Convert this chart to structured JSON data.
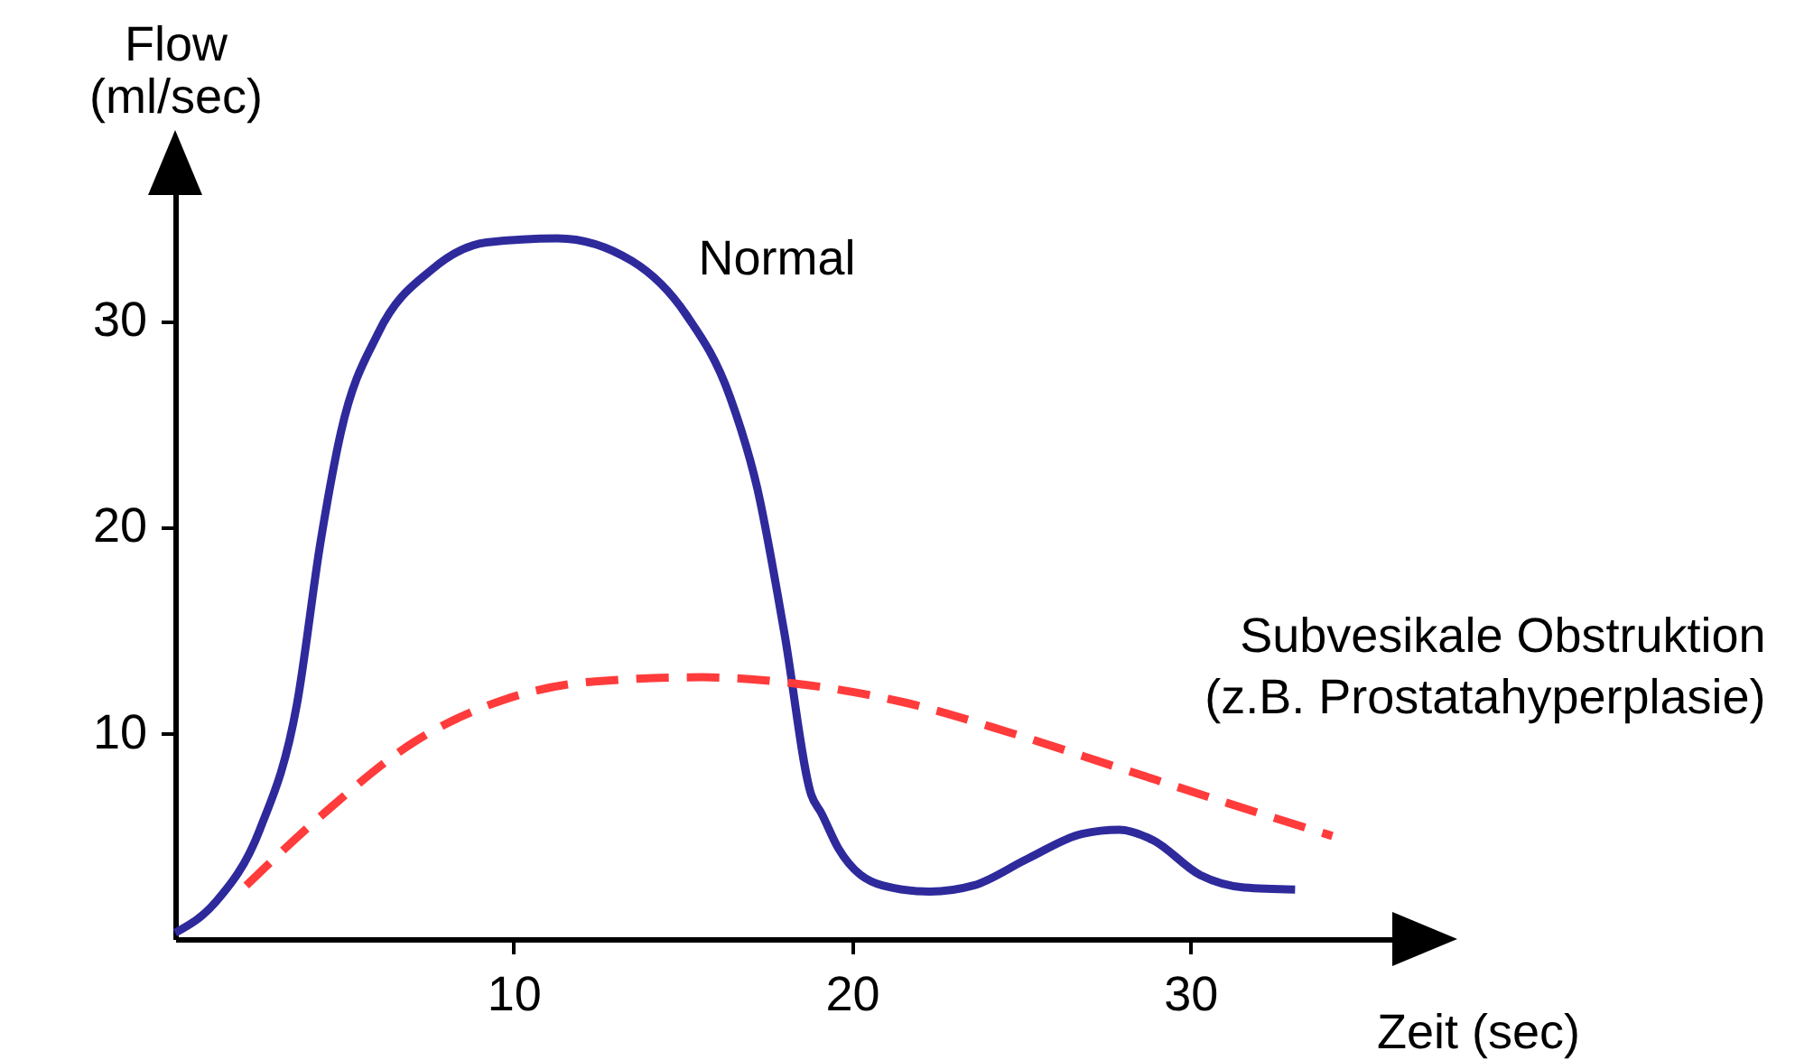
{
  "chart_data": {
    "type": "line",
    "xlabel": "Zeit (sec)",
    "ylabel": "Flow (ml/sec)",
    "xlim": [
      0,
      36.4
    ],
    "ylim": [
      0,
      36.8
    ],
    "xticks": [
      10,
      20,
      30
    ],
    "yticks": [
      10,
      20,
      30
    ],
    "grid": false,
    "legend": false,
    "marker": "none",
    "series": [
      {
        "name": "Normal",
        "color": "#2e2a9c",
        "line_style": "solid",
        "x": [
          0,
          1.2,
          2.5,
          3.6,
          4.3,
          4.9,
          6.0,
          7.6,
          9.2,
          11.3,
          13.5,
          15.1,
          16.4,
          17.2,
          18.0,
          18.8,
          19.1,
          19.6,
          20.9,
          22.3,
          23.6,
          25.2,
          26.8,
          27.9,
          28.9,
          30.3,
          31.6,
          33.1
        ],
        "values": [
          0.3,
          1.8,
          5.3,
          11.4,
          19.3,
          24.6,
          29.4,
          32.5,
          33.8,
          34.0,
          32.9,
          30.3,
          26.3,
          21.9,
          14.9,
          7.0,
          6.1,
          4.4,
          2.6,
          2.3,
          2.6,
          3.9,
          5.1,
          5.3,
          4.8,
          3.1,
          2.5,
          2.4
        ]
      },
      {
        "name": "Subvesikale Obstruktion (z.B. Prostatahyperplasie)",
        "color": "#ff3b3b",
        "line_style": "dashed",
        "x": [
          2.1,
          4.4,
          7.1,
          9.7,
          12.4,
          15.6,
          18.3,
          21.5,
          24.7,
          27.9,
          31.1,
          34.2
        ],
        "values": [
          2.6,
          6.1,
          9.6,
          11.6,
          12.5,
          12.7,
          12.4,
          11.5,
          10.0,
          8.3,
          6.6,
          5.0
        ]
      }
    ]
  }
}
